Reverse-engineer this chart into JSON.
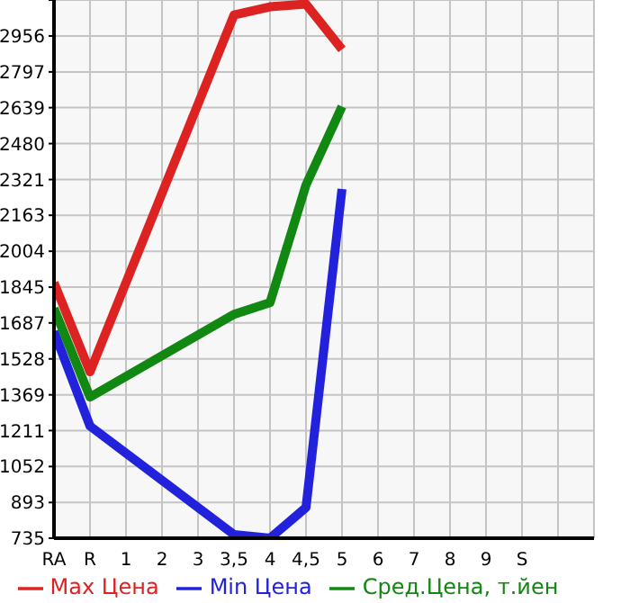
{
  "chart_data": {
    "type": "line",
    "categories": [
      "RA",
      "R",
      "1",
      "2",
      "3",
      "3,5",
      "4",
      "4,5",
      "5",
      "6",
      "7",
      "8",
      "9",
      "S",
      null,
      null
    ],
    "series": [
      {
        "name": "Max Цена",
        "color": "#dd2222",
        "values": [
          1865,
          1471,
          null,
          null,
          null,
          3049,
          3085,
          3097,
          2897,
          null,
          null,
          null,
          null,
          null,
          null,
          null
        ]
      },
      {
        "name": "Min Цена",
        "color": "#2222dd",
        "values": [
          1649,
          1231,
          null,
          null,
          null,
          751,
          735,
          871,
          2279,
          null,
          null,
          null,
          null,
          null,
          null,
          null
        ]
      },
      {
        "name": "Сред.Цена, т.йен",
        "color": "#118811",
        "values": [
          1751,
          1359,
          null,
          null,
          null,
          1725,
          1777,
          2297,
          2644,
          null,
          null,
          null,
          null,
          null,
          null,
          null
        ]
      }
    ],
    "ylim": [
      735,
      3115
    ],
    "yticks": [
      735,
      893,
      1052,
      1211,
      1369,
      1528,
      1687,
      1845,
      2004,
      2163,
      2321,
      2480,
      2639,
      2797,
      2956,
      {
        "value": 3115,
        "label": null
      }
    ],
    "grid": true,
    "legend": "bottom",
    "marker": "none",
    "line_style": "solid"
  }
}
